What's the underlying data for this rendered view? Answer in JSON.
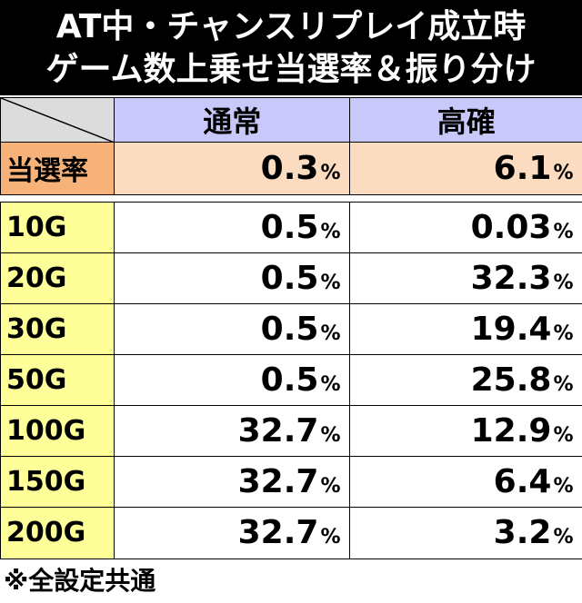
{
  "title": [
    "AT中・チャンスリプレイ成立時",
    "ゲーム数上乗せ当選率＆振り分け"
  ],
  "table": {
    "header": [
      "通常",
      "高確"
    ],
    "rate_row": {
      "label": "当選率",
      "values": [
        "0.3%",
        "6.1%"
      ]
    },
    "rows": [
      [
        "10G",
        "0.5%",
        "0.03%"
      ],
      [
        "20G",
        "0.5%",
        "32.3%"
      ],
      [
        "30G",
        "0.5%",
        "19.4%"
      ],
      [
        "50G",
        "0.5%",
        "25.8%"
      ],
      [
        "100G",
        "32.7%",
        "12.9%"
      ],
      [
        "150G",
        "32.7%",
        "6.4%"
      ],
      [
        "200G",
        "32.7%",
        "3.2%"
      ]
    ]
  },
  "footnote": "※全設定共通"
}
